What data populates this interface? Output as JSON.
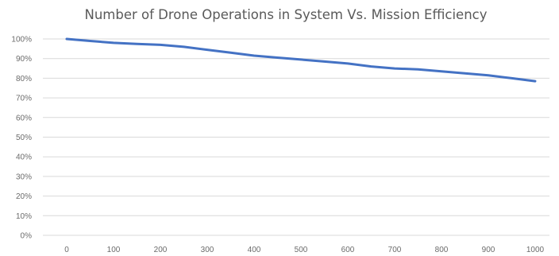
{
  "chart_data": {
    "type": "line",
    "title": "Number of Drone Operations in System Vs. Mission Efficiency",
    "xlabel": "",
    "ylabel": "",
    "x_ticks": [
      "0",
      "100",
      "200",
      "300",
      "400",
      "500",
      "600",
      "700",
      "800",
      "900",
      "1000"
    ],
    "y_ticks": [
      "0%",
      "10%",
      "20%",
      "30%",
      "40%",
      "50%",
      "60%",
      "70%",
      "80%",
      "90%",
      "100%"
    ],
    "xlim": [
      0,
      1000
    ],
    "ylim": [
      0,
      100
    ],
    "grid": "horizontal",
    "legend": "none",
    "series": [
      {
        "color": "#4472c4",
        "x": [
          0,
          50,
          100,
          150,
          200,
          250,
          300,
          350,
          400,
          450,
          500,
          550,
          600,
          650,
          700,
          750,
          800,
          850,
          900,
          950,
          1000
        ],
        "y": [
          100,
          99,
          98,
          97.5,
          97,
          96,
          94.5,
          93,
          91.5,
          90.5,
          89.5,
          88.5,
          87.5,
          86,
          85,
          84.5,
          83.5,
          82.5,
          81.5,
          80,
          78.5
        ]
      }
    ]
  }
}
